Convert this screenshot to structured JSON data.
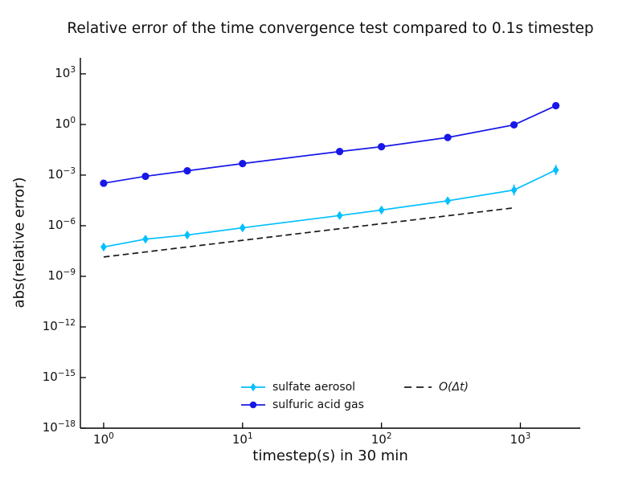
{
  "figure": {
    "background": "#ffffff"
  },
  "chart_data": {
    "type": "line",
    "title": "Relative error of the time convergence test compared to 0.1s timestep",
    "xlabel": "timestep(s) in 30 min",
    "ylabel": "abs(relative error)",
    "xscale": "log",
    "yscale": "log",
    "grid": false,
    "xlim": [
      0.68,
      2700
    ],
    "ylim": [
      1e-18,
      8900
    ],
    "x_tick_exponents": [
      0,
      1,
      2,
      3
    ],
    "y_tick_exponents": [
      3,
      0,
      -3,
      -6,
      -9,
      -12,
      -15,
      -18
    ],
    "x": [
      1,
      2,
      4,
      10,
      50,
      100,
      300,
      900,
      1800
    ],
    "series": [
      {
        "name": "sulfate aerosol",
        "color": "#00BFFF",
        "marker": "diamond",
        "values": [
          5.5e-08,
          1.6e-07,
          2.8e-07,
          7.5e-07,
          4e-06,
          8.5e-06,
          3e-05,
          0.00013,
          0.002
        ],
        "err_factor": [
          1.7,
          1.6,
          1.6,
          1.6,
          1.6,
          1.6,
          1.6,
          2.1,
          2.0
        ]
      },
      {
        "name": "sulfuric acid gas",
        "color": "#1717E8",
        "marker": "circle",
        "values": [
          0.00033,
          0.00085,
          0.0018,
          0.0048,
          0.025,
          0.048,
          0.17,
          0.95,
          13
        ],
        "err_factor": null
      }
    ],
    "reference_line": {
      "name": "O(Δt)",
      "style": "dashed",
      "color": "#1a1a1a",
      "x": [
        1,
        900
      ],
      "y": [
        1.4e-08,
        1.15e-05
      ]
    },
    "legend_position": "lower center, two columns, no frame"
  }
}
